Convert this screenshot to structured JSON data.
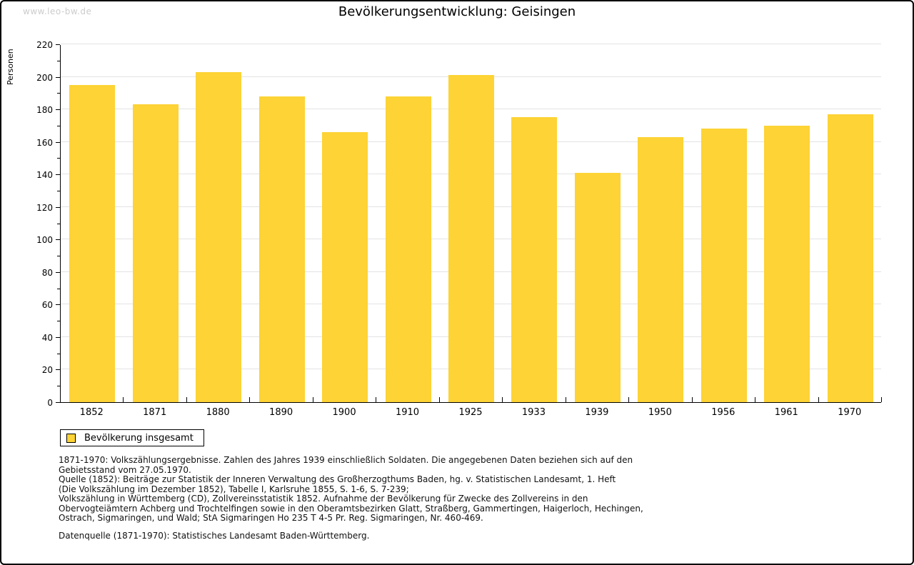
{
  "page": {
    "watermark": "www.leo-bw.de",
    "title": "Bevölkerungsentwicklung: Geisingen"
  },
  "chart_data": {
    "type": "bar",
    "title": "Bevölkerungsentwicklung: Geisingen",
    "xlabel": "",
    "ylabel": "Personen",
    "categories": [
      "1852",
      "1871",
      "1880",
      "1890",
      "1900",
      "1910",
      "1925",
      "1933",
      "1939",
      "1950",
      "1956",
      "1961",
      "1970"
    ],
    "values": [
      195,
      183,
      203,
      188,
      166,
      188,
      201,
      175,
      141,
      163,
      168,
      170,
      177
    ],
    "ylim": [
      0,
      220
    ],
    "ytick_step": 20,
    "ytick_minor_step": 10,
    "grid": true,
    "legend_position": "bottom-left",
    "bar_color": "#FDD335",
    "series_name": "Bevölkerung insgesamt"
  },
  "legend": {
    "label": "Bevölkerung insgesamt",
    "swatch_color": "#FDD335"
  },
  "footnotes": {
    "lines": [
      "1871-1970: Volkszählungsergebnisse. Zahlen des Jahres 1939 einschließlich Soldaten. Die angegebenen Daten beziehen sich auf den",
      "Gebietsstand vom 27.05.1970.",
      "Quelle (1852): Beiträge zur Statistik der Inneren Verwaltung des Großherzogthums Baden, hg. v. Statistischen Landesamt, 1. Heft",
      "(Die Volkszählung im Dezember 1852), Tabelle I, Karlsruhe 1855, S. 1-6, S. 7-239;",
      "Volkszählung in Württemberg (CD), Zollvereinsstatistik 1852. Aufnahme der Bevölkerung für Zwecke des Zollvereins in den",
      "Obervogteiämtern Achberg und Trochtelfingen sowie in den Oberamtsbezirken Glatt, Straßberg, Gammertingen, Haigerloch, Hechingen,",
      "Ostrach, Sigmaringen, und Wald; StA Sigmaringen Ho 235 T 4-5 Pr. Reg. Sigmaringen, Nr. 460-469."
    ],
    "datasource": "Datenquelle (1871-1970): Statistisches Landesamt Baden-Württemberg."
  },
  "colors": {
    "bar": "#FDD335",
    "grid": "#E3E3E3",
    "axis": "#000000",
    "watermark": "#CCCCCC",
    "text": "#111111"
  }
}
